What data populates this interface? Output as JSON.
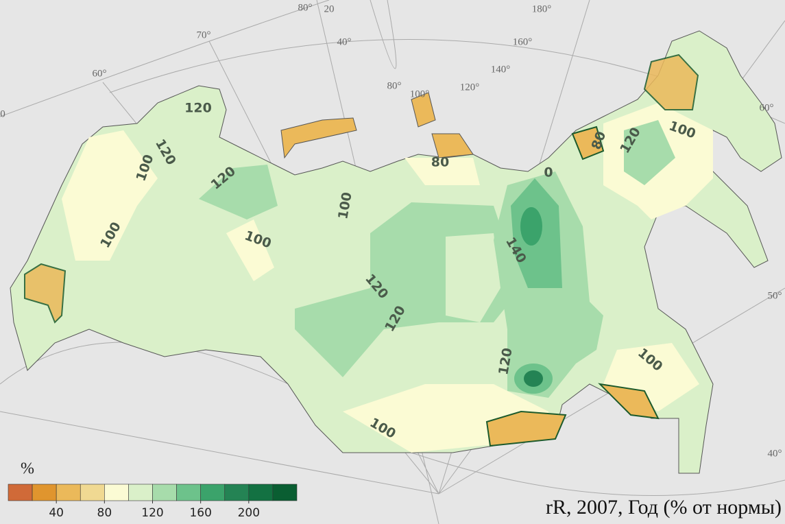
{
  "map": {
    "title": "rR, 2007, Год (% от нормы)",
    "legend": {
      "title": "%",
      "lim": [
        0,
        240
      ],
      "ticks": [
        40,
        80,
        120,
        160,
        200
      ],
      "colors": [
        "#d06a38",
        "#e0952e",
        "#ebb95a",
        "#f0d992",
        "#fbfbd4",
        "#daf0c9",
        "#a7dcab",
        "#6dc28b",
        "#3ba36b",
        "#248354",
        "#137142",
        "#0a5e32"
      ]
    },
    "contour_labels": [
      "120",
      "120",
      "100",
      "120",
      "100",
      "100",
      "100",
      "120",
      "120",
      "140",
      "120",
      "100",
      "80",
      "80",
      "120",
      "100",
      "100",
      "0"
    ],
    "graticule_labels": [
      "80°",
      "20",
      "70°",
      "40°",
      "60°",
      "80°",
      "100°",
      "120°",
      "140°",
      "160°",
      "180°",
      "60°",
      "50°",
      "40°",
      "0"
    ]
  }
}
